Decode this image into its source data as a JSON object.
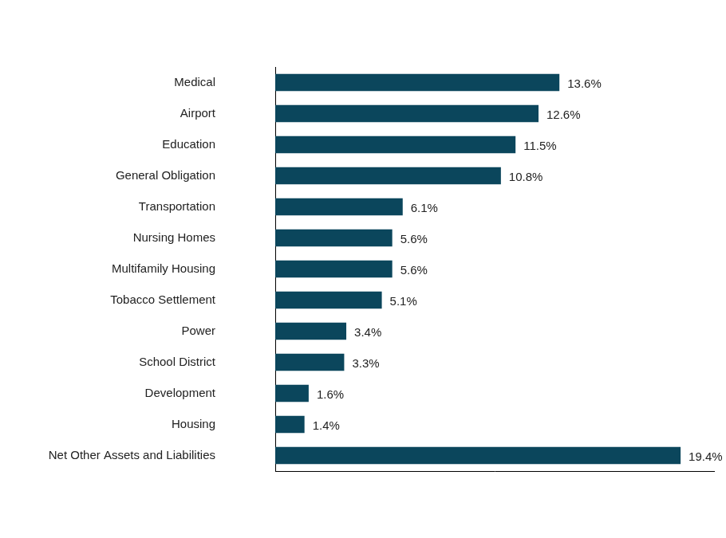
{
  "chart_data": {
    "type": "bar",
    "orientation": "horizontal",
    "categories": [
      "Medical",
      "Airport",
      "Education",
      "General Obligation",
      "Transportation",
      "Nursing Homes",
      "Multifamily Housing",
      "Tobacco Settlement",
      "Power",
      "School District",
      "Development",
      "Housing",
      "Net Other Assets and Liabilities"
    ],
    "values": [
      13.6,
      12.6,
      11.5,
      10.8,
      6.1,
      5.6,
      5.6,
      5.1,
      3.4,
      3.3,
      1.6,
      1.4,
      19.4
    ],
    "value_labels": [
      "13.6%",
      "12.6%",
      "11.5%",
      "10.8%",
      "6.1%",
      "5.6%",
      "5.6%",
      "5.1%",
      "3.4%",
      "3.3%",
      "1.6%",
      "1.4%",
      "19.4%"
    ],
    "color": "#0b465c",
    "xlim": [
      0,
      21
    ],
    "grid": false,
    "data_labels": true,
    "tick_labels": "y"
  }
}
